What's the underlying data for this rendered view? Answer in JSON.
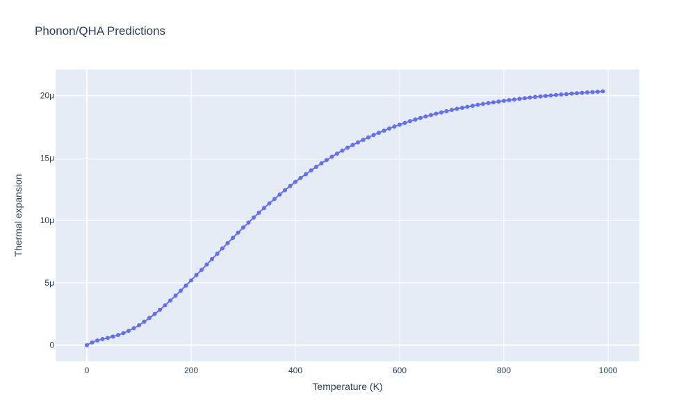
{
  "chart_data": {
    "type": "line",
    "title": "Phonon/QHA Predictions",
    "xlabel": "Temperature (K)",
    "ylabel": "Thermal expansion",
    "xlim": [
      -60,
      1060
    ],
    "ylim": [
      -1.3e-06,
      2.21e-05
    ],
    "grid": true,
    "mode": "lines+markers",
    "colors": {
      "plot_bg": "#e5ecf6",
      "grid": "#ffffff",
      "series": "#636efa",
      "text": "#2a3f5f"
    },
    "x_ticks": [
      {
        "value": 0,
        "label": "0"
      },
      {
        "value": 200,
        "label": "200"
      },
      {
        "value": 400,
        "label": "400"
      },
      {
        "value": 600,
        "label": "600"
      },
      {
        "value": 800,
        "label": "800"
      },
      {
        "value": 1000,
        "label": "1000"
      }
    ],
    "y_ticks": [
      {
        "value": 0,
        "label": "0"
      },
      {
        "value": 5e-06,
        "label": "5μ"
      },
      {
        "value": 1e-05,
        "label": "10μ"
      },
      {
        "value": 1.5e-05,
        "label": "15μ"
      },
      {
        "value": 2e-05,
        "label": "20μ"
      }
    ],
    "series": [
      {
        "x": [
          0,
          10,
          20,
          30,
          40,
          50,
          60,
          70,
          80,
          90,
          100,
          110,
          120,
          130,
          140,
          150,
          160,
          170,
          180,
          190,
          200,
          210,
          220,
          230,
          240,
          250,
          260,
          270,
          280,
          290,
          300,
          310,
          320,
          330,
          340,
          350,
          360,
          370,
          380,
          390,
          400,
          410,
          420,
          430,
          440,
          450,
          460,
          470,
          480,
          490,
          500,
          510,
          520,
          530,
          540,
          550,
          560,
          570,
          580,
          590,
          600,
          610,
          620,
          630,
          640,
          650,
          660,
          670,
          680,
          690,
          700,
          710,
          720,
          730,
          740,
          750,
          760,
          770,
          780,
          790,
          800,
          810,
          820,
          830,
          840,
          850,
          860,
          870,
          880,
          890,
          900,
          910,
          920,
          930,
          940,
          950,
          960,
          970,
          980,
          990
        ],
        "y": [
          0,
          2.2e-07,
          3.8e-07,
          4.9e-07,
          5.9e-07,
          6.9e-07,
          8.2e-07,
          9.7e-07,
          1.15e-06,
          1.36e-06,
          1.6e-06,
          1.88e-06,
          2.18e-06,
          2.5e-06,
          2.84e-06,
          3.2e-06,
          3.58e-06,
          3.97e-06,
          4.37e-06,
          4.78e-06,
          5.2e-06,
          5.62e-06,
          6.04e-06,
          6.47e-06,
          6.9e-06,
          7.33e-06,
          7.76e-06,
          8.18e-06,
          8.6e-06,
          9.02e-06,
          9.43e-06,
          9.83e-06,
          1.023e-05,
          1.062e-05,
          1.1e-05,
          1.137e-05,
          1.173e-05,
          1.208e-05,
          1.243e-05,
          1.276e-05,
          1.309e-05,
          1.341e-05,
          1.371e-05,
          1.401e-05,
          1.43e-05,
          1.458e-05,
          1.485e-05,
          1.511e-05,
          1.536e-05,
          1.56e-05,
          1.583e-05,
          1.605e-05,
          1.626e-05,
          1.646e-05,
          1.666e-05,
          1.685e-05,
          1.703e-05,
          1.72e-05,
          1.737e-05,
          1.753e-05,
          1.768e-05,
          1.782e-05,
          1.796e-05,
          1.809e-05,
          1.822e-05,
          1.834e-05,
          1.845e-05,
          1.856e-05,
          1.866e-05,
          1.876e-05,
          1.886e-05,
          1.895e-05,
          1.903e-05,
          1.911e-05,
          1.919e-05,
          1.927e-05,
          1.934e-05,
          1.941e-05,
          1.947e-05,
          1.953e-05,
          1.959e-05,
          1.965e-05,
          1.97e-05,
          1.975e-05,
          1.98e-05,
          1.985e-05,
          1.99e-05,
          1.994e-05,
          1.998e-05,
          2.002e-05,
          2.006e-05,
          2.01e-05,
          2.013e-05,
          2.017e-05,
          2.02e-05,
          2.023e-05,
          2.026e-05,
          2.029e-05,
          2.032e-05,
          2.035e-05
        ]
      }
    ]
  }
}
